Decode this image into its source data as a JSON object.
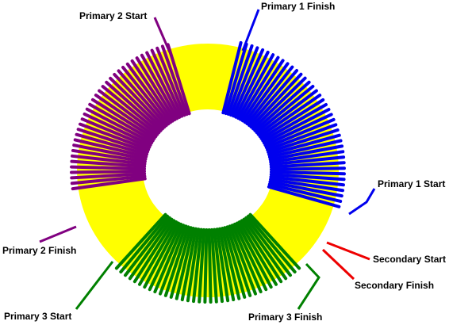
{
  "labels": {
    "primary1_finish": "Primary 1 Finish",
    "primary1_start": "Primary 1 Start",
    "primary2_start": "Primary 2 Start",
    "primary2_finish": "Primary 2 Finish",
    "primary3_start": "Primary 3 Start",
    "primary3_finish": "Primary 3 Finish",
    "secondary_start": "Secondary Start",
    "secondary_finish": "Secondary Finish"
  }
}
